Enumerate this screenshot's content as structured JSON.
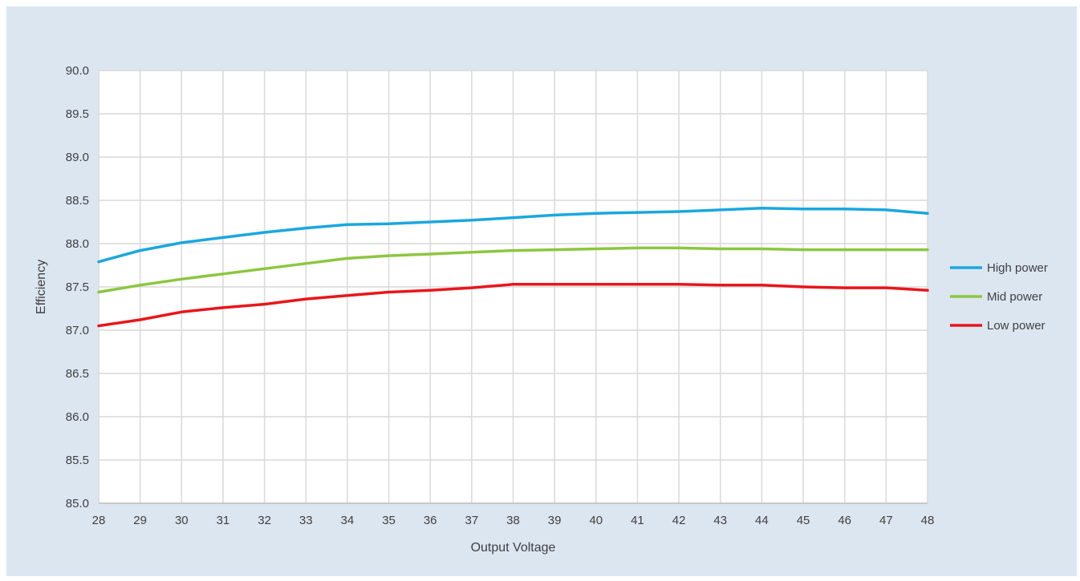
{
  "chart_data": {
    "type": "line",
    "title": "",
    "xlabel": "Output Voltage",
    "ylabel": "Efficiency",
    "xlim": [
      28,
      48
    ],
    "ylim": [
      85.0,
      90.0
    ],
    "x_ticks": [
      "28",
      "29",
      "30",
      "31",
      "32",
      "33",
      "34",
      "35",
      "36",
      "37",
      "38",
      "39",
      "40",
      "41",
      "42",
      "43",
      "44",
      "45",
      "46",
      "47",
      "48"
    ],
    "y_ticks": [
      "85.0",
      "85.5",
      "86.0",
      "86.5",
      "87.0",
      "87.5",
      "88.0",
      "88.5",
      "89.0",
      "89.5",
      "90.0"
    ],
    "grid": true,
    "legend_position": "right",
    "x": [
      28,
      29,
      30,
      31,
      32,
      33,
      34,
      35,
      36,
      37,
      38,
      39,
      40,
      41,
      42,
      43,
      44,
      45,
      46,
      47,
      48
    ],
    "series": [
      {
        "name": "High power",
        "color": "#1aa7e0",
        "values": [
          87.79,
          87.92,
          88.01,
          88.07,
          88.13,
          88.18,
          88.22,
          88.23,
          88.25,
          88.27,
          88.3,
          88.33,
          88.35,
          88.36,
          88.37,
          88.39,
          88.41,
          88.4,
          88.4,
          88.39,
          88.35
        ]
      },
      {
        "name": "Mid power",
        "color": "#8dc63f",
        "values": [
          87.44,
          87.52,
          87.59,
          87.65,
          87.71,
          87.77,
          87.83,
          87.86,
          87.88,
          87.9,
          87.92,
          87.93,
          87.94,
          87.95,
          87.95,
          87.94,
          87.94,
          87.93,
          87.93,
          87.93,
          87.93
        ]
      },
      {
        "name": "Low power",
        "color": "#e8161b",
        "values": [
          87.05,
          87.12,
          87.21,
          87.26,
          87.3,
          87.36,
          87.4,
          87.44,
          87.46,
          87.49,
          87.53,
          87.53,
          87.53,
          87.53,
          87.53,
          87.52,
          87.52,
          87.5,
          87.49,
          87.49,
          87.46
        ]
      }
    ]
  }
}
